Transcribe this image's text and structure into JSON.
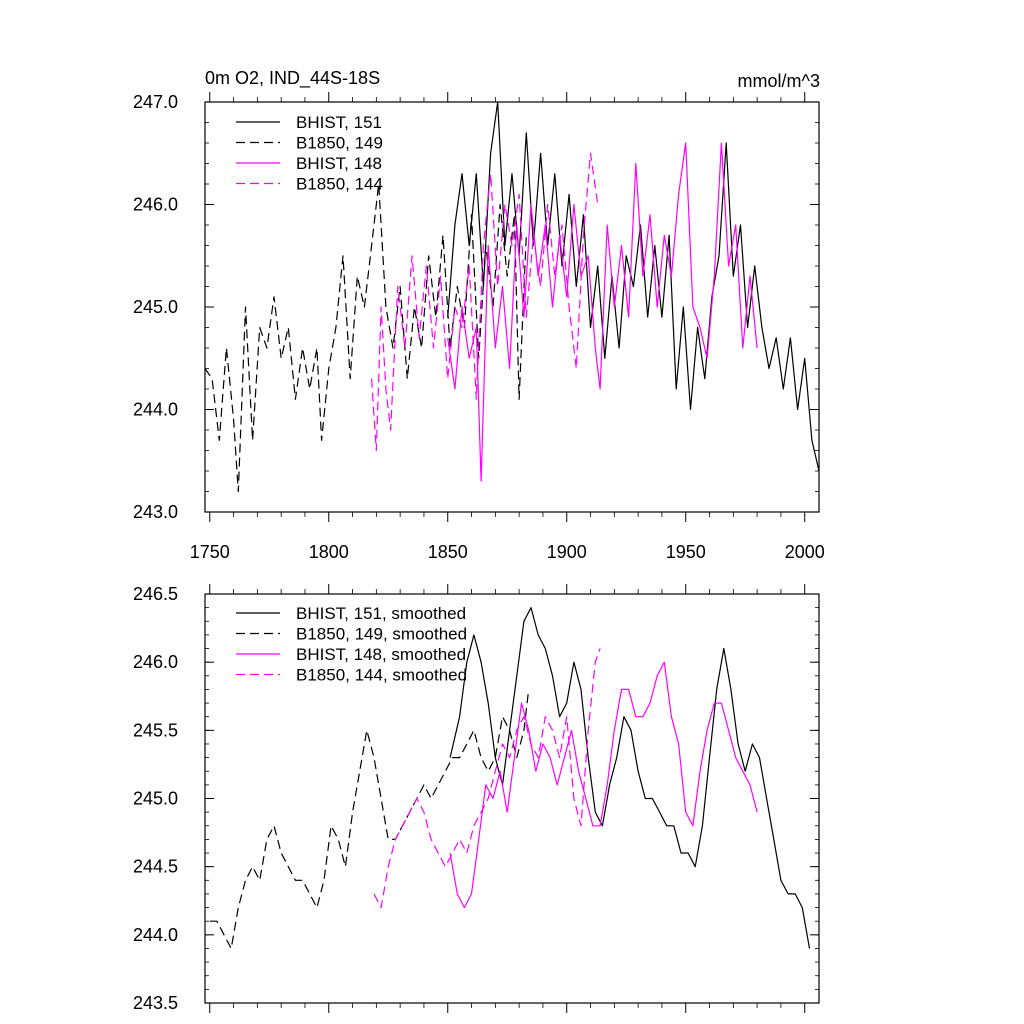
{
  "chart_data": [
    {
      "type": "line",
      "title": "0m O2, IND_44S-18S",
      "units": "mmol/m^3",
      "xlim": [
        1748,
        2006
      ],
      "ylim": [
        243.0,
        247.0
      ],
      "xticks": [
        1750,
        1800,
        1850,
        1900,
        1950,
        2000
      ],
      "xtick_labels": [
        "1750",
        "1800",
        "1850",
        "1900",
        "1950",
        "2000"
      ],
      "yticks": [
        243.0,
        244.0,
        245.0,
        246.0,
        247.0
      ],
      "ytick_labels": [
        "243.0",
        "244.0",
        "245.0",
        "246.0",
        "247.0"
      ],
      "legend_position": "top-left",
      "series": [
        {
          "name": "BHIST, 151",
          "color": "#000000",
          "dash": "solid",
          "x": [
            1850,
            1853,
            1856,
            1859,
            1862,
            1865,
            1868,
            1871,
            1874,
            1877,
            1880,
            1883,
            1886,
            1889,
            1892,
            1895,
            1898,
            1901,
            1904,
            1907,
            1910,
            1913,
            1916,
            1919,
            1922,
            1925,
            1928,
            1931,
            1934,
            1937,
            1940,
            1943,
            1946,
            1949,
            1952,
            1955,
            1958,
            1961,
            1964,
            1967,
            1970,
            1973,
            1976,
            1979,
            1982,
            1985,
            1988,
            1991,
            1994,
            1997,
            2000,
            2003,
            2006
          ],
          "y": [
            244.9,
            245.8,
            246.3,
            245.6,
            246.3,
            245.2,
            246.5,
            247.0,
            245.6,
            246.3,
            245.5,
            246.7,
            245.6,
            246.5,
            245.6,
            246.3,
            245.4,
            246.1,
            245.2,
            245.9,
            244.8,
            245.4,
            244.5,
            245.3,
            244.6,
            245.5,
            245.2,
            245.8,
            244.9,
            245.6,
            244.9,
            245.7,
            244.2,
            245.0,
            244.0,
            244.8,
            244.3,
            245.1,
            245.5,
            246.6,
            245.3,
            245.8,
            244.8,
            245.4,
            244.8,
            244.4,
            244.7,
            244.2,
            244.7,
            244.0,
            244.5,
            243.7,
            243.4
          ]
        },
        {
          "name": "B1850, 149",
          "color": "#000000",
          "dash": "dashed",
          "x": [
            1748,
            1751,
            1754,
            1757,
            1760,
            1762,
            1765,
            1768,
            1771,
            1774,
            1777,
            1780,
            1783,
            1786,
            1789,
            1792,
            1795,
            1797,
            1800,
            1803,
            1806,
            1809,
            1812,
            1815,
            1818,
            1821,
            1824,
            1827,
            1830,
            1833,
            1836,
            1839,
            1842,
            1845,
            1848,
            1851,
            1854,
            1857,
            1860,
            1863,
            1866,
            1869,
            1872,
            1875,
            1878,
            1880,
            1883
          ],
          "y": [
            244.4,
            244.3,
            243.7,
            244.6,
            243.9,
            243.2,
            245.0,
            243.7,
            244.8,
            244.6,
            245.1,
            244.5,
            244.8,
            244.1,
            244.6,
            244.2,
            244.6,
            243.7,
            244.4,
            244.8,
            245.5,
            244.3,
            245.3,
            245.0,
            245.6,
            246.2,
            245.0,
            244.6,
            245.2,
            244.3,
            245.0,
            244.6,
            245.5,
            244.9,
            245.7,
            244.6,
            245.2,
            244.8,
            245.9,
            244.5,
            245.6,
            245.0,
            246.0,
            245.3,
            245.9,
            244.1,
            245.7
          ]
        },
        {
          "name": "BHIST, 148",
          "color": "#ff00ff",
          "dash": "solid",
          "x": [
            1850,
            1853,
            1856,
            1859,
            1862,
            1864,
            1867,
            1870,
            1873,
            1876,
            1879,
            1882,
            1885,
            1888,
            1891,
            1894,
            1897,
            1900,
            1903,
            1906,
            1909,
            1912,
            1914,
            1917,
            1920,
            1923,
            1926,
            1929,
            1932,
            1935,
            1938,
            1941,
            1944,
            1947,
            1950,
            1953,
            1956,
            1959,
            1962,
            1965,
            1968,
            1971,
            1974,
            1977,
            1980
          ],
          "y": [
            244.7,
            244.2,
            245.0,
            244.5,
            244.8,
            243.3,
            245.6,
            244.6,
            245.2,
            244.4,
            245.8,
            244.9,
            246.0,
            245.3,
            245.8,
            245.0,
            245.7,
            245.1,
            246.0,
            245.3,
            245.5,
            244.6,
            244.2,
            245.8,
            245.0,
            245.6,
            244.9,
            246.4,
            245.3,
            245.9,
            245.0,
            245.7,
            245.3,
            246.1,
            246.6,
            245.0,
            244.8,
            244.5,
            245.3,
            246.6,
            245.4,
            245.8,
            244.6,
            245.3,
            244.6
          ]
        },
        {
          "name": "B1850, 144",
          "color": "#ff00ff",
          "dash": "dashed",
          "x": [
            1818,
            1820,
            1822,
            1824,
            1826,
            1829,
            1832,
            1835,
            1838,
            1841,
            1844,
            1847,
            1850,
            1853,
            1856,
            1859,
            1862,
            1865,
            1868,
            1871,
            1874,
            1877,
            1880,
            1883,
            1886,
            1889,
            1892,
            1895,
            1898,
            1901,
            1904,
            1907,
            1910,
            1913
          ],
          "y": [
            244.3,
            243.6,
            245.0,
            244.2,
            243.8,
            245.2,
            244.6,
            245.5,
            244.7,
            245.4,
            244.6,
            245.3,
            244.3,
            245.0,
            244.8,
            245.4,
            244.1,
            245.6,
            246.3,
            245.2,
            246.0,
            245.6,
            246.1,
            244.9,
            245.7,
            245.2,
            246.0,
            245.3,
            245.8,
            245.0,
            244.4,
            245.7,
            246.5,
            246.0
          ]
        }
      ]
    },
    {
      "type": "line",
      "xlim": [
        1748,
        2006
      ],
      "ylim": [
        243.5,
        246.5
      ],
      "yticks": [
        243.5,
        244.0,
        244.5,
        245.0,
        245.5,
        246.0,
        246.5
      ],
      "ytick_labels": [
        "243.5",
        "244.0",
        "244.5",
        "245.0",
        "245.5",
        "246.0",
        "246.5"
      ],
      "legend_position": "top-left",
      "series": [
        {
          "name": "BHIST, 151, smoothed",
          "color": "#000000",
          "dash": "solid",
          "x": [
            1851,
            1855,
            1858,
            1861,
            1864,
            1867,
            1870,
            1873,
            1876,
            1879,
            1882,
            1885,
            1888,
            1891,
            1894,
            1897,
            1900,
            1903,
            1906,
            1909,
            1912,
            1915,
            1918,
            1921,
            1924,
            1927,
            1930,
            1933,
            1936,
            1939,
            1942,
            1945,
            1948,
            1951,
            1954,
            1957,
            1960,
            1963,
            1966,
            1969,
            1972,
            1975,
            1978,
            1981,
            1984,
            1987,
            1990,
            1993,
            1996,
            1999,
            2002
          ],
          "y": [
            245.3,
            245.6,
            246.0,
            246.2,
            246.0,
            245.7,
            245.3,
            245.1,
            245.5,
            245.9,
            246.3,
            246.4,
            246.2,
            246.1,
            245.9,
            245.6,
            245.7,
            246.0,
            245.8,
            245.3,
            244.9,
            244.8,
            245.1,
            245.3,
            245.6,
            245.5,
            245.2,
            245.0,
            245.0,
            244.9,
            244.8,
            244.8,
            244.6,
            244.6,
            244.5,
            244.8,
            245.3,
            245.8,
            246.1,
            245.8,
            245.4,
            245.2,
            245.4,
            245.3,
            245.0,
            244.7,
            244.4,
            244.3,
            244.3,
            244.2,
            243.9
          ]
        },
        {
          "name": "B1850, 149, smoothed",
          "color": "#000000",
          "dash": "dashed",
          "x": [
            1750,
            1753,
            1756,
            1759,
            1762,
            1765,
            1768,
            1771,
            1774,
            1777,
            1780,
            1783,
            1786,
            1789,
            1792,
            1795,
            1798,
            1801,
            1804,
            1807,
            1810,
            1813,
            1816,
            1819,
            1822,
            1825,
            1828,
            1831,
            1834,
            1837,
            1840,
            1843,
            1846,
            1849,
            1852,
            1855,
            1858,
            1861,
            1864,
            1867,
            1870,
            1873,
            1876,
            1879,
            1882,
            1884
          ],
          "y": [
            244.1,
            244.1,
            244.0,
            243.9,
            244.2,
            244.4,
            244.5,
            244.4,
            244.7,
            244.8,
            244.6,
            244.5,
            244.4,
            244.4,
            244.3,
            244.2,
            244.4,
            244.8,
            244.7,
            244.5,
            244.9,
            245.2,
            245.5,
            245.3,
            245.0,
            244.7,
            244.7,
            244.8,
            244.9,
            245.0,
            245.1,
            245.0,
            245.1,
            245.2,
            245.3,
            245.3,
            245.4,
            245.5,
            245.3,
            245.2,
            245.3,
            245.6,
            245.5,
            245.3,
            245.5,
            245.8
          ]
        },
        {
          "name": "BHIST, 148, smoothed",
          "color": "#ff00ff",
          "dash": "solid",
          "x": [
            1851,
            1854,
            1857,
            1860,
            1863,
            1866,
            1869,
            1872,
            1875,
            1878,
            1881,
            1884,
            1887,
            1890,
            1893,
            1896,
            1899,
            1902,
            1905,
            1908,
            1911,
            1914,
            1917,
            1920,
            1923,
            1926,
            1929,
            1932,
            1935,
            1938,
            1941,
            1944,
            1947,
            1950,
            1953,
            1956,
            1959,
            1962,
            1965,
            1968,
            1971,
            1974,
            1977,
            1980
          ],
          "y": [
            244.6,
            244.3,
            244.2,
            244.3,
            244.7,
            245.1,
            245.0,
            245.2,
            244.9,
            245.3,
            245.7,
            245.5,
            245.2,
            245.4,
            245.3,
            245.1,
            245.3,
            245.5,
            245.2,
            245.0,
            244.8,
            244.8,
            245.1,
            245.5,
            245.8,
            245.8,
            245.6,
            245.6,
            245.7,
            245.9,
            246.0,
            245.6,
            245.4,
            244.9,
            244.8,
            245.2,
            245.5,
            245.7,
            245.7,
            245.5,
            245.3,
            245.2,
            245.1,
            244.9
          ]
        },
        {
          "name": "B1850, 144, smoothed",
          "color": "#ff00ff",
          "dash": "dashed",
          "x": [
            1819,
            1822,
            1825,
            1828,
            1831,
            1834,
            1837,
            1840,
            1843,
            1846,
            1849,
            1852,
            1855,
            1858,
            1861,
            1864,
            1867,
            1870,
            1873,
            1876,
            1879,
            1882,
            1885,
            1888,
            1891,
            1894,
            1897,
            1900,
            1903,
            1906,
            1909,
            1912,
            1914
          ],
          "y": [
            244.3,
            244.2,
            244.5,
            244.7,
            244.8,
            244.9,
            245.0,
            244.9,
            244.7,
            244.6,
            244.5,
            244.6,
            244.7,
            244.6,
            244.8,
            244.9,
            245.0,
            245.2,
            245.4,
            245.3,
            245.5,
            245.6,
            245.4,
            245.3,
            245.6,
            245.5,
            245.3,
            245.6,
            245.0,
            244.8,
            245.5,
            246.0,
            246.1
          ]
        }
      ]
    }
  ]
}
